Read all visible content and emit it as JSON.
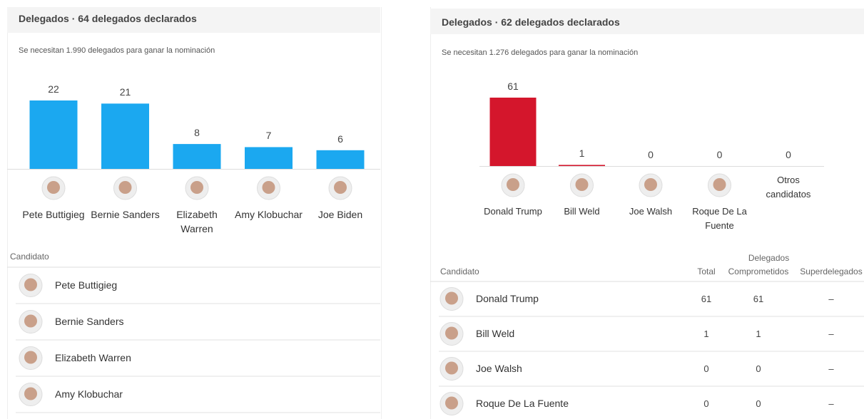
{
  "chart_data": [
    {
      "type": "bar",
      "title": "Delegados · 64 delegados declarados",
      "subtitle": "Se necesitan 1.990 delegados para ganar la nominación",
      "categories": [
        "Pete Buttigieg",
        "Bernie Sanders",
        "Elizabeth Warren",
        "Amy Klobuchar",
        "Joe Biden"
      ],
      "values": [
        22,
        21,
        8,
        7,
        6
      ],
      "color": "#1ba8f0"
    },
    {
      "type": "bar",
      "title": "Delegados · 62 delegados declarados",
      "subtitle": "Se necesitan 1.276 delegados para ganar la nominación",
      "categories": [
        "Donald Trump",
        "Bill Weld",
        "Joe Walsh",
        "Roque De La Fuente",
        "Otros candidatos"
      ],
      "values": [
        61,
        1,
        0,
        0,
        0
      ],
      "color": "#d4162c"
    }
  ],
  "tables": [
    {
      "columns": [
        "Candidato"
      ],
      "rows": [
        [
          "Pete Buttigieg"
        ],
        [
          "Bernie Sanders"
        ],
        [
          "Elizabeth Warren"
        ],
        [
          "Amy Klobuchar"
        ]
      ]
    },
    {
      "group": "Delegados",
      "columns": [
        "Candidato",
        "Total",
        "Comprometidos",
        "Superdelegados"
      ],
      "rows": [
        [
          "Donald Trump",
          61,
          61,
          "–"
        ],
        [
          "Bill Weld",
          1,
          1,
          "–"
        ],
        [
          "Joe Walsh",
          0,
          0,
          "–"
        ],
        [
          "Roque De La Fuente",
          0,
          0,
          "–"
        ]
      ]
    }
  ]
}
